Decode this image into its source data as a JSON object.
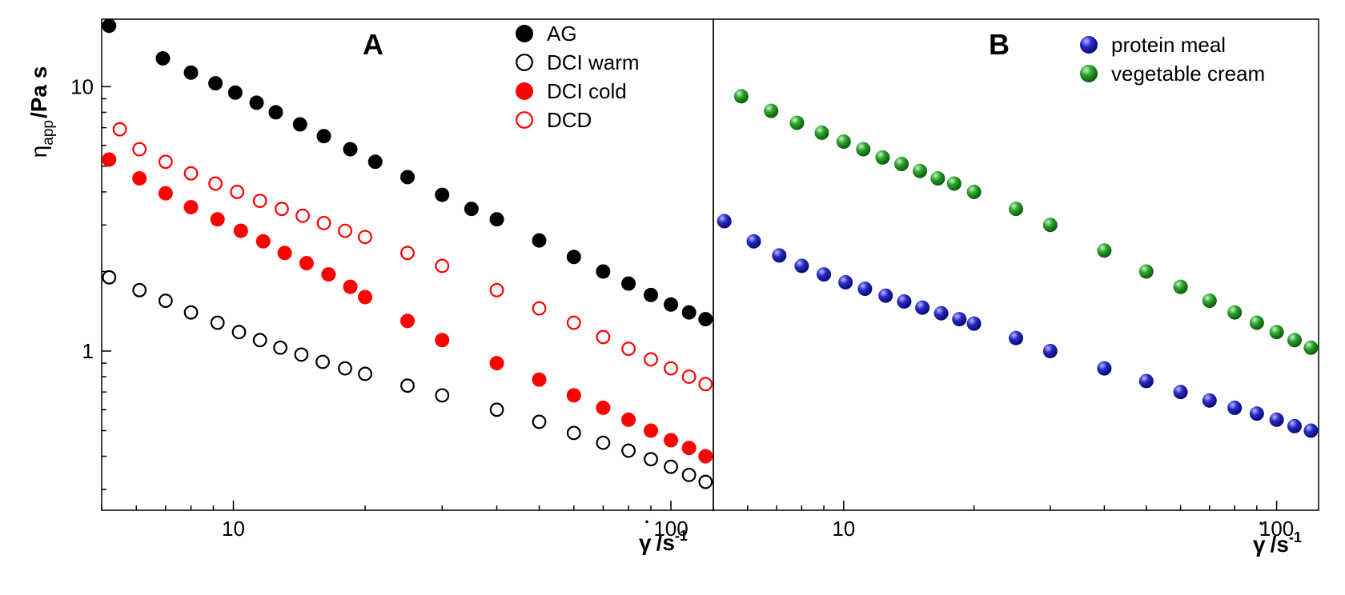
{
  "chart_data": [
    {
      "panel": "A",
      "type": "scatter",
      "x_scale": "log",
      "y_scale": "log",
      "xlim": [
        5,
        125
      ],
      "ylim": [
        0.25,
        18
      ],
      "ylabel": "η",
      "ylabel_sub": "app",
      "ylabel_unit": "/Pa s",
      "xlabel_symbol": "γ",
      "xlabel_unit": "/s",
      "xlabel_exp": "-1",
      "x_ticks": [
        10,
        100
      ],
      "y_ticks": [
        1,
        10
      ],
      "legend_position": "top-right",
      "series": [
        {
          "name": "AG",
          "color": "#000000",
          "marker": "filled",
          "x": [
            5.2,
            6.9,
            8.0,
            9.1,
            10.1,
            11.3,
            12.5,
            14.2,
            16.1,
            18.5,
            21.1,
            25.0,
            30.0,
            35.0,
            40.0,
            50.0,
            60.0,
            70.0,
            80.0,
            90.0,
            100.0,
            110.0,
            120.0
          ],
          "y": [
            17.0,
            12.8,
            11.3,
            10.3,
            9.5,
            8.7,
            8.0,
            7.2,
            6.5,
            5.8,
            5.2,
            4.55,
            3.9,
            3.45,
            3.15,
            2.62,
            2.27,
            2.0,
            1.8,
            1.63,
            1.5,
            1.4,
            1.32
          ]
        },
        {
          "name": "DCI warm",
          "color": "#000000",
          "marker": "open",
          "x": [
            5.2,
            6.1,
            7.0,
            8.0,
            9.2,
            10.3,
            11.5,
            12.8,
            14.3,
            16.0,
            18.0,
            20.0,
            25.0,
            30.0,
            40.0,
            50.0,
            60.0,
            70.0,
            80.0,
            90.0,
            100.0,
            110.0,
            120.0
          ],
          "y": [
            1.9,
            1.7,
            1.55,
            1.4,
            1.28,
            1.18,
            1.1,
            1.03,
            0.97,
            0.91,
            0.86,
            0.82,
            0.74,
            0.68,
            0.6,
            0.54,
            0.49,
            0.45,
            0.42,
            0.39,
            0.365,
            0.34,
            0.32
          ]
        },
        {
          "name": "DCI cold",
          "color": "#ff0000",
          "marker": "filled",
          "x": [
            5.2,
            6.1,
            7.0,
            8.0,
            9.2,
            10.4,
            11.7,
            13.1,
            14.7,
            16.5,
            18.5,
            20.0,
            25.0,
            30.0,
            40.0,
            50.0,
            60.0,
            70.0,
            80.0,
            90.0,
            100.0,
            110.0,
            120.0
          ],
          "y": [
            5.3,
            4.5,
            3.95,
            3.5,
            3.15,
            2.85,
            2.6,
            2.35,
            2.15,
            1.95,
            1.75,
            1.6,
            1.3,
            1.1,
            0.9,
            0.78,
            0.68,
            0.61,
            0.55,
            0.5,
            0.46,
            0.43,
            0.4
          ]
        },
        {
          "name": "DCD",
          "color": "#ff0000",
          "marker": "open",
          "x": [
            5.5,
            6.1,
            7.0,
            8.0,
            9.1,
            10.2,
            11.5,
            12.9,
            14.4,
            16.1,
            18.0,
            20.0,
            25.0,
            30.0,
            40.0,
            50.0,
            60.0,
            70.0,
            80.0,
            90.0,
            100.0,
            110.0,
            120.0
          ],
          "y": [
            6.9,
            5.8,
            5.2,
            4.7,
            4.3,
            4.0,
            3.7,
            3.45,
            3.25,
            3.05,
            2.85,
            2.7,
            2.35,
            2.1,
            1.7,
            1.45,
            1.28,
            1.13,
            1.02,
            0.93,
            0.86,
            0.8,
            0.75
          ]
        }
      ]
    },
    {
      "panel": "B",
      "type": "scatter",
      "x_scale": "log",
      "y_scale": "log",
      "xlim": [
        5,
        125
      ],
      "ylim": [
        0.25,
        18
      ],
      "xlabel_symbol": "γ",
      "xlabel_unit": "/s",
      "xlabel_exp": "-1",
      "x_ticks": [
        10,
        100
      ],
      "legend_position": "top-right",
      "series": [
        {
          "name": "protein meal",
          "color": "#1a1aa8",
          "marker": "sphere",
          "x": [
            5.3,
            6.2,
            7.1,
            8.0,
            9.0,
            10.1,
            11.2,
            12.5,
            13.8,
            15.2,
            16.8,
            18.5,
            20.0,
            25.0,
            30.0,
            40.0,
            50.0,
            60.0,
            70.0,
            80.0,
            90.0,
            100.0,
            110.0,
            120.0
          ],
          "y": [
            3.1,
            2.6,
            2.3,
            2.1,
            1.95,
            1.82,
            1.72,
            1.62,
            1.54,
            1.46,
            1.39,
            1.32,
            1.27,
            1.12,
            1.0,
            0.86,
            0.77,
            0.7,
            0.65,
            0.61,
            0.58,
            0.55,
            0.52,
            0.5
          ]
        },
        {
          "name": "vegetable cream",
          "color": "#1f8c1f",
          "marker": "sphere",
          "x": [
            5.8,
            6.8,
            7.8,
            8.9,
            10.0,
            11.1,
            12.3,
            13.6,
            15.0,
            16.5,
            18.0,
            20.0,
            25.0,
            30.0,
            40.0,
            50.0,
            60.0,
            70.0,
            80.0,
            90.0,
            100.0,
            110.0,
            120.0
          ],
          "y": [
            9.2,
            8.1,
            7.3,
            6.7,
            6.2,
            5.8,
            5.4,
            5.1,
            4.8,
            4.5,
            4.3,
            4.0,
            3.45,
            3.0,
            2.4,
            2.0,
            1.75,
            1.55,
            1.4,
            1.28,
            1.18,
            1.1,
            1.03
          ]
        }
      ]
    }
  ]
}
